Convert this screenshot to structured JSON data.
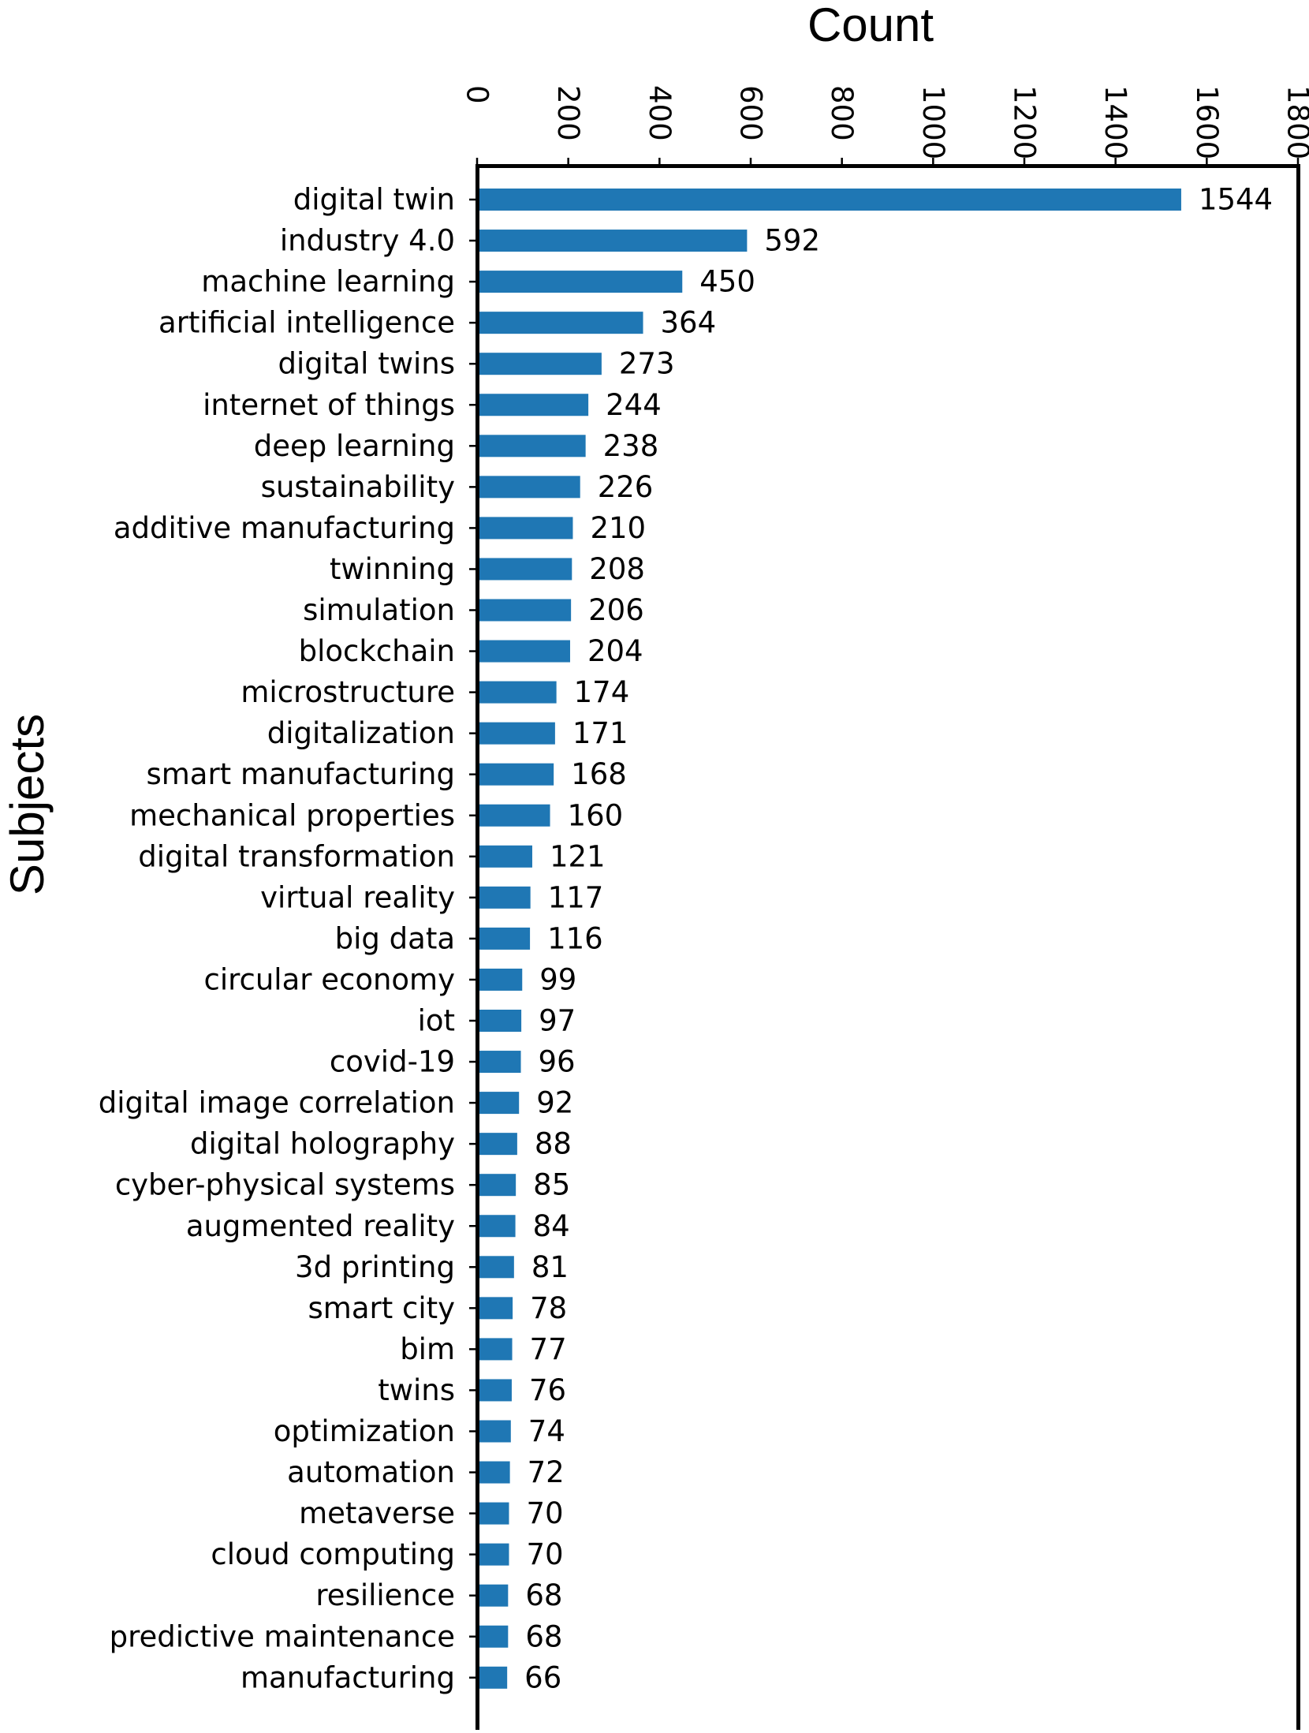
{
  "chart_data": {
    "type": "bar",
    "orientation": "horizontal",
    "title": "Count",
    "xlabel": "Count",
    "ylabel": "Subjects",
    "xlim": [
      0,
      1800
    ],
    "xticks": [
      0,
      200,
      400,
      600,
      800,
      1000,
      1200,
      1400,
      1600,
      1800
    ],
    "xtick_labels": [
      "0",
      "200",
      "400",
      "600",
      "800",
      "1000",
      "1200",
      "1400",
      "1600",
      "1800"
    ],
    "x_axis_position": "top",
    "tick_label_rotation": "vertical",
    "grid": false,
    "bar_color": "#1f77b4",
    "categories": [
      "digital twin",
      "industry 4.0",
      "machine learning",
      "artificial intelligence",
      "digital twins",
      "internet of things",
      "deep learning",
      "sustainability",
      "additive manufacturing",
      "twinning",
      "simulation",
      "blockchain",
      "microstructure",
      "digitalization",
      "smart manufacturing",
      "mechanical properties",
      "digital transformation",
      "virtual reality",
      "big data",
      "circular economy",
      "iot",
      "covid-19",
      "digital image correlation",
      "digital holography",
      "cyber-physical systems",
      "augmented reality",
      "3d printing",
      "smart city",
      "bim",
      "twins",
      "optimization",
      "automation",
      "metaverse",
      "cloud computing",
      "resilience",
      "predictive maintenance",
      "manufacturing"
    ],
    "values": [
      1544,
      592,
      450,
      364,
      273,
      244,
      238,
      226,
      210,
      208,
      206,
      204,
      174,
      171,
      168,
      160,
      121,
      117,
      116,
      99,
      97,
      96,
      92,
      88,
      85,
      84,
      81,
      78,
      77,
      76,
      74,
      72,
      70,
      70,
      68,
      68,
      66
    ],
    "value_labels": [
      "1544",
      "592",
      "450",
      "364",
      "273",
      "244",
      "238",
      "226",
      "210",
      "208",
      "206",
      "204",
      "174",
      "171",
      "168",
      "160",
      "121",
      "117",
      "116",
      "99",
      "97",
      "96",
      "92",
      "88",
      "85",
      "84",
      "81",
      "78",
      "77",
      "76",
      "74",
      "72",
      "70",
      "70",
      "68",
      "68",
      "66"
    ]
  }
}
